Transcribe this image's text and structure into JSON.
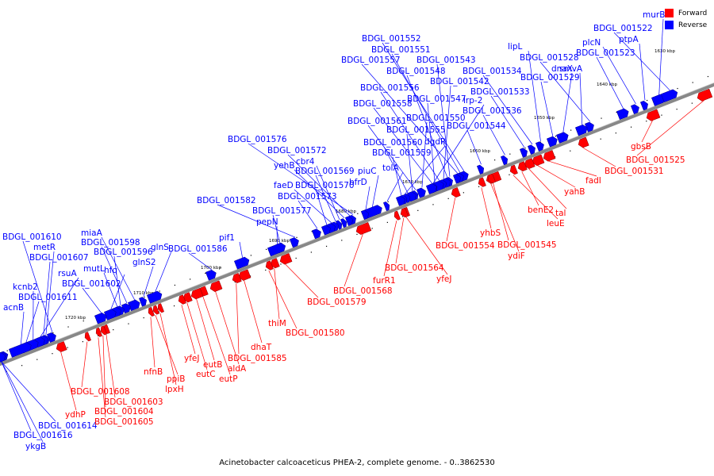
{
  "caption": "Acinetobacter calcoaceticus PHEA-2, complete genome. - 0..3862530",
  "legend": {
    "forward": "Forward",
    "reverse": "Reverse"
  },
  "colors": {
    "forward": "#ff0000",
    "reverse": "#0000ff",
    "axis": "#888888"
  },
  "kbp_ticks": [
    "1630 kbp",
    "1640 kbp",
    "1650 kbp",
    "1660 kbp",
    "1670 kbp",
    "1680 kbp",
    "1690 kbp",
    "1700 kbp",
    "1710 kbp",
    "1720 kbp"
  ],
  "reverse_genes": [
    "murB",
    "BDGL_001522",
    "ptpA",
    "plcN",
    "BDGL_001523",
    "lipL",
    "BDGL_001528",
    "smvA",
    "dnaX",
    "BDGL_001529",
    "BDGL_001534",
    "BDGL_001533",
    "BDGL_001536",
    "BDGL_001544",
    "BDGL_001552",
    "BDGL_001551",
    "BDGL_001557",
    "BDGL_001543",
    "BDGL_001548",
    "BDGL_001542",
    "BDGL_001556",
    "BDGL_001547",
    "lrp-2",
    "BDGL_001558",
    "BDGL_001550",
    "BDGL_001561",
    "BDGL_001555",
    "BDGL_001560",
    "dgdR",
    "BDGL_001559",
    "tolA",
    "piuC",
    "bfrD",
    "BDGL_001576",
    "BDGL_001572",
    "yehB",
    "cbr4",
    "BDGL_001569",
    "faeD",
    "BDGL_001570",
    "BDGL_001573",
    "BDGL_001582",
    "BDGL_001577",
    "pepN",
    "pif1",
    "BDGL_001586",
    "glnS",
    "glnS2",
    "miaA",
    "BDGL_001598",
    "BDGL_001596",
    "mutL",
    "hfq",
    "BDGL_001602",
    "BDGL_001610",
    "metR",
    "BDGL_001607",
    "rsuA",
    "kcnb2",
    "BDGL_001611",
    "acnB",
    "BDGL_001614",
    "BDGL_001616",
    "ykgB"
  ],
  "forward_genes": [
    "gbsB",
    "BDGL_001525",
    "BDGL_001531",
    "fadI",
    "yahB",
    "tal",
    "benE2",
    "leuE",
    "BDGL_001545",
    "ydiF",
    "yhbS",
    "BDGL_001554",
    "yfeJ",
    "BDGL_001564",
    "furR1",
    "BDGL_001568",
    "BDGL_001579",
    "thiM",
    "BDGL_001580",
    "dhaT",
    "BDGL_001585",
    "aldA",
    "eutP",
    "eutB",
    "eutC",
    "yfeJ",
    "lpxH",
    "ppiB",
    "nfnB",
    "BDGL_001603",
    "BDGL_001604",
    "BDGL_001605",
    "BDGL_001608",
    "ydhP"
  ]
}
